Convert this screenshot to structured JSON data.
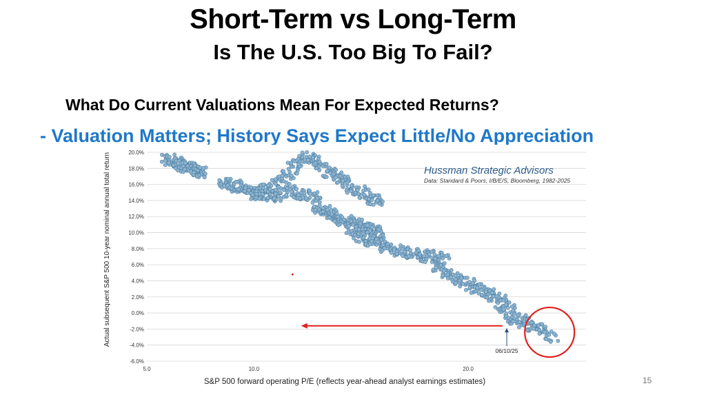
{
  "slide": {
    "title": "Short-Term vs Long-Term",
    "subtitle": "Is The U.S. Too Big To Fail?",
    "question": "What Do Current Valuations Mean For Expected Returns?",
    "takeaway": "- Valuation Matters; History Says Expect Little/No Appreciation",
    "page_number": "15"
  },
  "chart_data": {
    "type": "scatter",
    "title": "Hussman Strategic Advisors",
    "source": "Data: Standard & Poors, I/B/E/S, Bloomberg, 1982-2025",
    "xlabel": "S&P 500 forward operating P/E (reflects year-ahead analyst earnings estimates)",
    "ylabel": "Actual subsequent S&P 500 10-year nominal annual total return",
    "xlim": [
      5.0,
      25.5
    ],
    "ylim": [
      -6.0,
      20.0
    ],
    "x_ticks": [
      "5.0",
      "10.0",
      "20.0"
    ],
    "x_tick_values": [
      5.0,
      10.0,
      20.0
    ],
    "y_ticks": [
      "20.0%",
      "18.0%",
      "16.0%",
      "14.0%",
      "12.0%",
      "10.0%",
      "8.0%",
      "6.0%",
      "4.0%",
      "2.0%",
      "0.0%",
      "-2.0%",
      "-4.0%",
      "-6.0%"
    ],
    "y_tick_values": [
      20,
      18,
      16,
      14,
      12,
      10,
      8,
      6,
      4,
      2,
      0,
      -2,
      -4,
      -6
    ],
    "grid": "horizontal",
    "colors": {
      "points": "#8fb4cf",
      "point_edge": "#4b7ea3",
      "annotation": "#e0201c",
      "arrow": "#2a4d7a",
      "grid": "#d6d6d6"
    },
    "clusters": [
      {
        "x": [
          5.9,
          6.2,
          6.5,
          6.8,
          7.1,
          7.4,
          7.6
        ],
        "y": [
          19.2,
          18.9,
          18.6,
          18.3,
          18.0,
          17.7,
          17.4
        ]
      },
      {
        "x": [
          8.5,
          8.9,
          9.3,
          9.7,
          10.1,
          10.5,
          11.0,
          11.5,
          12.0,
          12.5,
          13.0
        ],
        "y": [
          16.3,
          16.0,
          15.7,
          15.3,
          15.0,
          14.7,
          14.5,
          15.2,
          14.9,
          14.6,
          14.4
        ]
      },
      {
        "x": [
          10.0,
          10.5,
          11.0,
          11.5,
          12.0,
          12.5,
          13.0,
          13.5,
          14.0,
          14.5,
          15.0,
          15.5,
          16.0
        ],
        "y": [
          14.8,
          15.3,
          15.8,
          17.0,
          18.6,
          19.5,
          18.8,
          17.5,
          16.8,
          15.8,
          15.0,
          14.3,
          14.0
        ]
      },
      {
        "x": [
          12.8,
          13.2,
          13.6,
          14.0,
          14.4,
          14.8,
          15.2,
          15.6,
          16.0
        ],
        "y": [
          13.2,
          12.8,
          12.3,
          11.8,
          11.3,
          11.0,
          10.6,
          10.2,
          9.8
        ]
      },
      {
        "x": [
          14.5,
          15.0,
          15.5,
          16.0,
          16.5,
          17.0,
          17.5,
          18.0,
          18.5,
          19.0
        ],
        "y": [
          10.3,
          9.6,
          9.0,
          8.5,
          8.0,
          7.6,
          7.3,
          7.1,
          6.9,
          6.7
        ]
      },
      {
        "x": [
          18.5,
          19.0,
          19.5,
          20.0,
          20.5,
          21.0,
          21.5,
          22.0
        ],
        "y": [
          5.5,
          4.8,
          4.2,
          3.6,
          3.0,
          2.3,
          1.6,
          0.8
        ]
      },
      {
        "x": [
          21.5,
          22.0,
          22.5,
          23.0,
          23.5,
          24.0
        ],
        "y": [
          0.2,
          -0.4,
          -1.0,
          -1.6,
          -2.3,
          -3.0
        ]
      }
    ],
    "annotations": {
      "date_label": "06/10/25",
      "date_x": 21.8,
      "arrow_from": [
        21.6,
        -1.6
      ],
      "arrow_to": [
        12.2,
        -1.6
      ],
      "circle_center": [
        23.8,
        -2.4
      ],
      "red_point": [
        11.8,
        4.8
      ]
    }
  }
}
